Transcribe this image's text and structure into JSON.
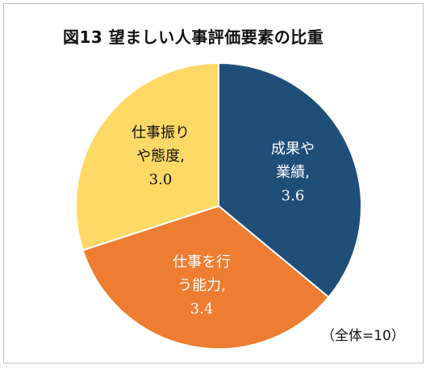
{
  "title": "図13 望ましい人事評価要素の比重",
  "note": "（全体=10）",
  "chart_data": {
    "type": "pie",
    "total": 10,
    "slices": [
      {
        "label_lines": [
          "成果や",
          "業績,"
        ],
        "value": 3.6,
        "value_label": "3.6",
        "color": "#1f4e79",
        "text_color": "#ffffff"
      },
      {
        "label_lines": [
          "仕事を行",
          "う能力,"
        ],
        "value": 3.4,
        "value_label": "3.4",
        "color": "#ed7d31",
        "text_color": "#ffffff"
      },
      {
        "label_lines": [
          "仕事振り",
          "や態度,"
        ],
        "value": 3.0,
        "value_label": "3.0",
        "color": "#ffd966",
        "text_color": "#111111"
      }
    ]
  }
}
